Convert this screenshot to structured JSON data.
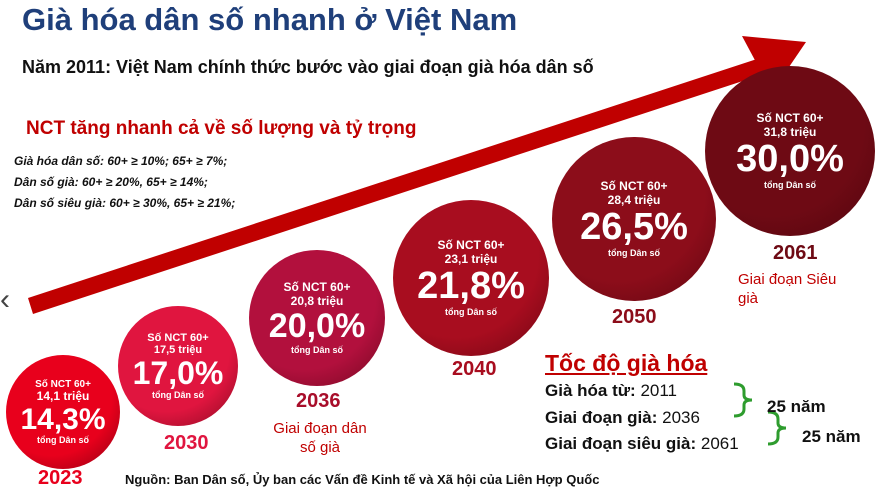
{
  "title": "Già hóa dân số nhanh ở Việt Nam",
  "subtitle": "Năm 2011: Việt Nam chính thức bước vào giai đoạn già hóa dân số",
  "headline": "NCT tăng nhanh cả về số lượng và tỷ trọng",
  "definitions": [
    "Già hóa dân số: 60+ ≥ 10%; 65+ ≥ 7%;",
    "Dân số già: 60+ ≥ 20%, 65+ ≥ 14%;",
    "Dân số siêu già: 60+ ≥ 30%, 65+ ≥ 21%;"
  ],
  "chart_data": {
    "type": "bubble",
    "series_label": "Số NCT 60+",
    "unit_label_count": "triệu",
    "share_label": "tổng Dân số",
    "points": [
      {
        "year": "2023",
        "count": "14,1 triệu",
        "share": "14,3%",
        "count_value": 14.1,
        "share_value": 14.3
      },
      {
        "year": "2030",
        "count": "17,5 triệu",
        "share": "17,0%",
        "count_value": 17.5,
        "share_value": 17.0
      },
      {
        "year": "2036",
        "count": "20,8 triệu",
        "share": "20,0%",
        "count_value": 20.8,
        "share_value": 20.0
      },
      {
        "year": "2040",
        "count": "23,1 triệu",
        "share": "21,8%",
        "count_value": 23.1,
        "share_value": 21.8
      },
      {
        "year": "2050",
        "count": "28,4 triệu",
        "share": "26,5%",
        "count_value": 28.4,
        "share_value": 26.5
      },
      {
        "year": "2061",
        "count": "31,8 triệu",
        "share": "30,0%",
        "count_value": 31.8,
        "share_value": 30.0
      }
    ],
    "bubble_colors": [
      "#e8001c",
      "#e0153f",
      "#b2103d",
      "#a80d1f",
      "#8c0d1a",
      "#6e0a14"
    ],
    "arrow_color": "#c00000"
  },
  "phases": {
    "p2036": "Giai đoạn dân số già",
    "p2061": "Giai đoạn Siêu già"
  },
  "speed": {
    "title": "Tốc độ già hóa",
    "rows": [
      {
        "label": "Già hóa từ:",
        "year": "2011"
      },
      {
        "label": "Giai đoạn già:",
        "year": "2036"
      },
      {
        "label": "Giai đoạn siêu già:",
        "year": "2061"
      }
    ],
    "gap1": "25 năm",
    "gap2": "25 năm",
    "brace_color": "#2e9c2e"
  },
  "source": "Nguồn: Ban Dân số, Ủy ban các Vấn đề Kinh tế và Xã hội của Liên Hợp Quốc",
  "nav": {
    "prev_glyph": "‹"
  }
}
